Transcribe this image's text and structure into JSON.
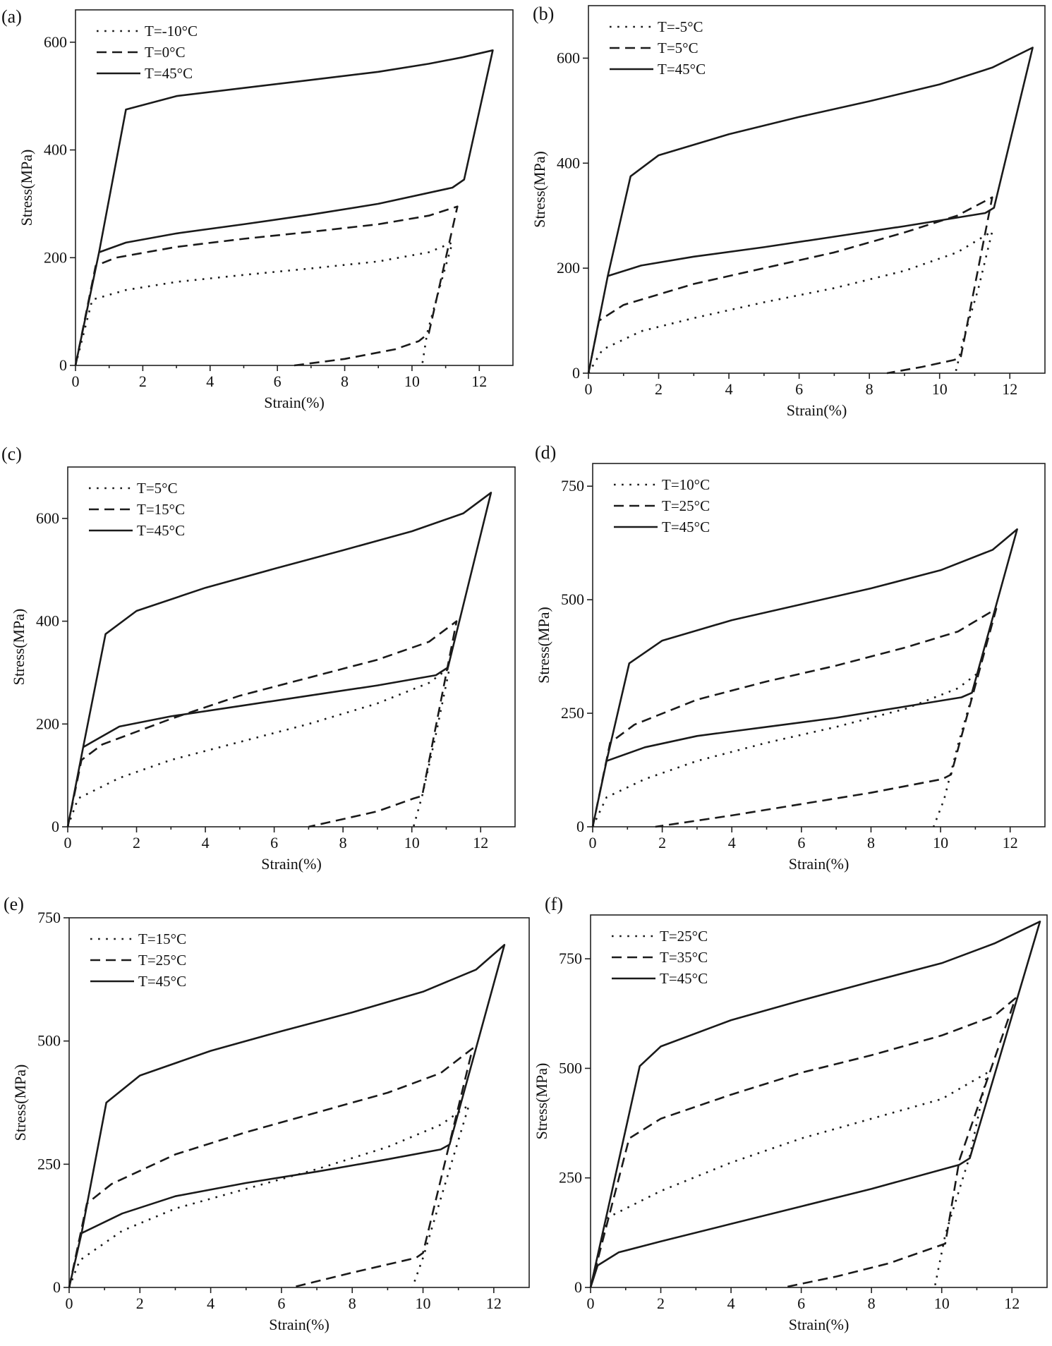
{
  "chart_data": [
    {
      "type": "line",
      "panel_label": "(a)",
      "xlabel": "Strain(%)",
      "ylabel": "Stress(MPa)",
      "xlim": [
        0,
        13
      ],
      "ylim": [
        0,
        660
      ],
      "xticks": [
        0,
        2,
        4,
        6,
        8,
        10,
        12
      ],
      "yticks": [
        0,
        200,
        400,
        600
      ],
      "legend_position": "top-left",
      "series": [
        {
          "name": "T=-10°C",
          "style": "dotted",
          "x": [
            0,
            0.5,
            1.5,
            3,
            5,
            7,
            9,
            10.5,
            11.2,
            10.8,
            10.45,
            10.3
          ],
          "y": [
            0,
            122,
            140,
            155,
            168,
            180,
            193,
            210,
            228,
            140,
            60,
            0
          ]
        },
        {
          "name": "T=0°C",
          "style": "dashed",
          "x": [
            0,
            0.6,
            1.2,
            3,
            5,
            7,
            9,
            10.5,
            11.35,
            10.5,
            10.2,
            9.5,
            8,
            6.5
          ],
          "y": [
            0,
            185,
            200,
            220,
            235,
            248,
            262,
            278,
            295,
            60,
            45,
            30,
            12,
            0
          ]
        },
        {
          "name": "T=45°C",
          "style": "solid",
          "x": [
            0,
            0.7,
            1.5,
            3,
            5,
            7,
            9,
            10.5,
            11.5,
            12.4,
            11.55,
            11.2,
            9,
            7,
            5,
            3,
            1.5,
            0.7,
            0
          ],
          "y": [
            0,
            210,
            475,
            500,
            515,
            530,
            545,
            560,
            572,
            585,
            345,
            330,
            300,
            280,
            262,
            245,
            228,
            210,
            0
          ]
        }
      ]
    },
    {
      "type": "line",
      "panel_label": "(b)",
      "xlabel": "Strain(%)",
      "ylabel": "Stress(MPa)",
      "xlim": [
        0,
        13
      ],
      "ylim": [
        0,
        700
      ],
      "xticks": [
        0,
        2,
        4,
        6,
        8,
        10,
        12
      ],
      "yticks": [
        0,
        200,
        400,
        600
      ],
      "legend_position": "top-left",
      "series": [
        {
          "name": "T=-5°C",
          "style": "dotted",
          "x": [
            0,
            0.4,
            1.5,
            3,
            5,
            7,
            9,
            10.5,
            11.5,
            11.1,
            10.7,
            10.45
          ],
          "y": [
            0,
            45,
            80,
            105,
            135,
            162,
            195,
            230,
            270,
            160,
            70,
            0
          ]
        },
        {
          "name": "T=5°C",
          "style": "dashed",
          "x": [
            0,
            0.3,
            1,
            3,
            5,
            7,
            9,
            10.5,
            11.5,
            10.6,
            10.4,
            9.5,
            8.5
          ],
          "y": [
            0,
            100,
            130,
            170,
            200,
            230,
            268,
            300,
            335,
            30,
            25,
            12,
            0
          ]
        },
        {
          "name": "T=45°C",
          "style": "solid",
          "x": [
            0,
            0.55,
            1.2,
            2,
            4,
            6,
            8,
            10,
            11.5,
            12.65,
            11.55,
            11.3,
            9,
            7,
            5,
            3,
            1.5,
            0.55,
            0
          ],
          "y": [
            0,
            185,
            375,
            415,
            455,
            488,
            518,
            550,
            582,
            620,
            315,
            305,
            280,
            260,
            240,
            222,
            205,
            185,
            0
          ]
        }
      ]
    },
    {
      "type": "line",
      "panel_label": "(c)",
      "xlabel": "Strain(%)",
      "ylabel": "Stress(MPa)",
      "xlim": [
        0,
        13
      ],
      "ylim": [
        0,
        700
      ],
      "xticks": [
        0,
        2,
        4,
        6,
        8,
        10,
        12
      ],
      "yticks": [
        0,
        200,
        400,
        600
      ],
      "legend_position": "top-left",
      "series": [
        {
          "name": "T=5°C",
          "style": "dotted",
          "x": [
            0,
            0.3,
            1.5,
            3,
            5,
            7,
            9,
            10.5,
            11.1,
            10.7,
            10.3,
            10.05
          ],
          "y": [
            0,
            55,
            95,
            130,
            165,
            200,
            240,
            280,
            310,
            180,
            60,
            0
          ]
        },
        {
          "name": "T=15°C",
          "style": "dashed",
          "x": [
            0,
            0.4,
            1,
            3,
            5,
            7,
            9,
            10.5,
            11.3,
            10.3,
            10.05,
            9,
            8,
            7
          ],
          "y": [
            0,
            130,
            160,
            210,
            255,
            290,
            325,
            360,
            400,
            60,
            55,
            30,
            15,
            0
          ]
        },
        {
          "name": "T=45°C",
          "style": "solid",
          "x": [
            0,
            0.45,
            1.1,
            2,
            4,
            6,
            8,
            10,
            11.5,
            12.3,
            11.05,
            10.7,
            9,
            7,
            5,
            3,
            1.5,
            0.45,
            0
          ],
          "y": [
            0,
            155,
            375,
            420,
            465,
            502,
            538,
            575,
            610,
            650,
            310,
            295,
            275,
            255,
            235,
            215,
            195,
            155,
            0
          ]
        }
      ]
    },
    {
      "type": "line",
      "panel_label": "(d)",
      "xlabel": "Strain(%)",
      "ylabel": "Stress(MPa)",
      "xlim": [
        0,
        13
      ],
      "ylim": [
        0,
        800
      ],
      "xticks": [
        0,
        2,
        4,
        6,
        8,
        10,
        12
      ],
      "yticks": [
        0,
        250,
        500,
        750
      ],
      "legend_position": "top-left",
      "series": [
        {
          "name": "T=10°C",
          "style": "dotted",
          "x": [
            0,
            0.4,
            1.5,
            3,
            5,
            7,
            9,
            10.5,
            11.1,
            10.5,
            10.1,
            9.8
          ],
          "y": [
            0,
            65,
            105,
            145,
            185,
            220,
            260,
            305,
            340,
            180,
            60,
            0
          ]
        },
        {
          "name": "T=25°C",
          "style": "dashed",
          "x": [
            0,
            0.5,
            1.2,
            3,
            5,
            7,
            9,
            10.5,
            11.6,
            10.3,
            10.05,
            8,
            6,
            4,
            1.8
          ],
          "y": [
            0,
            185,
            225,
            280,
            320,
            355,
            395,
            430,
            480,
            115,
            105,
            75,
            50,
            25,
            0
          ]
        },
        {
          "name": "T=45°C",
          "style": "solid",
          "x": [
            0,
            0.4,
            1.05,
            2,
            4,
            6,
            8,
            10,
            11.5,
            12.2,
            10.9,
            10.6,
            9,
            7,
            5,
            3,
            1.5,
            0.4,
            0
          ],
          "y": [
            0,
            145,
            360,
            410,
            455,
            490,
            525,
            565,
            610,
            655,
            295,
            285,
            265,
            240,
            220,
            200,
            175,
            145,
            0
          ]
        }
      ]
    },
    {
      "type": "line",
      "panel_label": "(e)",
      "xlabel": "Strain(%)",
      "ylabel": "Stress(MPa)",
      "xlim": [
        0,
        13
      ],
      "ylim": [
        0,
        750
      ],
      "xticks": [
        0,
        2,
        4,
        6,
        8,
        10,
        12
      ],
      "yticks": [
        0,
        250,
        500,
        750
      ],
      "legend_position": "top-left",
      "series": [
        {
          "name": "T=15°C",
          "style": "dotted",
          "x": [
            0,
            0.3,
            1.5,
            3,
            5,
            7,
            9,
            10.5,
            11.3,
            10.5,
            10,
            9.7
          ],
          "y": [
            0,
            55,
            115,
            160,
            200,
            240,
            285,
            330,
            370,
            180,
            60,
            0
          ]
        },
        {
          "name": "T=25°C",
          "style": "dashed",
          "x": [
            0,
            0.5,
            1.2,
            3,
            5,
            7,
            9,
            10.5,
            11.4,
            10,
            9.8,
            8,
            6.3
          ],
          "y": [
            0,
            170,
            210,
            270,
            315,
            355,
            395,
            435,
            485,
            70,
            60,
            30,
            0
          ]
        },
        {
          "name": "T=45°C",
          "style": "solid",
          "x": [
            0,
            0.35,
            1.05,
            2,
            4,
            6,
            8,
            10,
            11.5,
            12.3,
            10.75,
            10.5,
            9,
            7,
            5,
            3,
            1.5,
            0.35,
            0
          ],
          "y": [
            0,
            110,
            375,
            430,
            480,
            520,
            558,
            600,
            645,
            695,
            290,
            280,
            260,
            235,
            212,
            185,
            150,
            110,
            0
          ]
        }
      ]
    },
    {
      "type": "line",
      "panel_label": "(f)",
      "xlabel": "Strain(%)",
      "ylabel": "Stress(MPa)",
      "xlim": [
        0,
        13
      ],
      "ylim": [
        0,
        850
      ],
      "xticks": [
        0,
        2,
        4,
        6,
        8,
        10,
        12
      ],
      "yticks": [
        0,
        250,
        500,
        750
      ],
      "legend_position": "top-left",
      "series": [
        {
          "name": "T=25°C",
          "style": "dotted",
          "x": [
            0,
            0.5,
            2,
            4,
            6,
            8,
            10,
            11.3,
            10.8,
            10.1,
            9.8
          ],
          "y": [
            0,
            160,
            220,
            285,
            340,
            385,
            430,
            490,
            300,
            120,
            0
          ]
        },
        {
          "name": "T=35°C",
          "style": "dashed",
          "x": [
            0,
            1.1,
            2,
            4,
            6,
            8,
            10,
            11.5,
            12.1,
            10.5,
            10.1,
            8.5,
            7,
            5.5
          ],
          "y": [
            0,
            340,
            385,
            440,
            490,
            530,
            575,
            620,
            660,
            290,
            100,
            55,
            25,
            0
          ]
        },
        {
          "name": "T=45°C",
          "style": "solid",
          "x": [
            0,
            1.4,
            2,
            4,
            6,
            8,
            10,
            11.5,
            12.8,
            10.8,
            10.5,
            8,
            6,
            4,
            2,
            0.8,
            0.2,
            0
          ],
          "y": [
            0,
            505,
            550,
            610,
            655,
            698,
            740,
            785,
            835,
            295,
            280,
            225,
            185,
            145,
            105,
            80,
            50,
            0
          ]
        }
      ]
    }
  ]
}
